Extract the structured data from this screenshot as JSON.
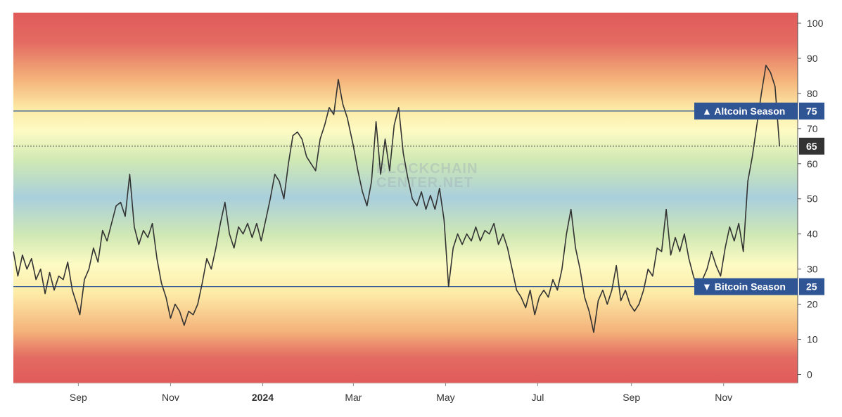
{
  "colors": {
    "line": "#333333",
    "threshold_line": "#2f5595",
    "tag_bg": "#2f5595",
    "current_tag_bg": "#333333",
    "band_red": "#e05a5a",
    "band_orange": "#f4b27a",
    "band_yellow": "#fdfbc4",
    "band_green": "#cfe8b4",
    "band_blue": "#a9cfdc"
  },
  "watermark": {
    "line1": "BLOCKCHAIN",
    "line2": "CENTER.NET"
  },
  "chart_data": {
    "type": "line",
    "title": "",
    "xlabel": "",
    "ylabel": "",
    "ylim": [
      -2.5,
      103
    ],
    "y_ticks": [
      "0",
      "10",
      "20",
      "30",
      "40",
      "50",
      "60",
      "70",
      "80",
      "90",
      "100"
    ],
    "y_axis_position": "right",
    "x_range": [
      "2023-07-20",
      "2024-12-20"
    ],
    "x_ticks": [
      {
        "date": "2023-09-01",
        "label": "Sep",
        "bold": false
      },
      {
        "date": "2023-11-01",
        "label": "Nov",
        "bold": false
      },
      {
        "date": "2024-01-01",
        "label": "2024",
        "bold": true
      },
      {
        "date": "2024-03-01",
        "label": "Mar",
        "bold": false
      },
      {
        "date": "2024-05-01",
        "label": "May",
        "bold": false
      },
      {
        "date": "2024-07-01",
        "label": "Jul",
        "bold": false
      },
      {
        "date": "2024-09-01",
        "label": "Sep",
        "bold": false
      },
      {
        "date": "2024-11-01",
        "label": "Nov",
        "bold": false
      }
    ],
    "thresholds": [
      {
        "name": "Altcoin Season",
        "value": 75,
        "label": "▲ Altcoin Season",
        "value_label": "75"
      },
      {
        "name": "Bitcoin Season",
        "value": 25,
        "label": "▼ Bitcoin Season",
        "value_label": "25"
      }
    ],
    "current": {
      "value": 65,
      "label": "65"
    },
    "series": [
      {
        "points": [
          [
            "2023-07-20",
            35
          ],
          [
            "2023-07-23",
            28
          ],
          [
            "2023-07-26",
            34
          ],
          [
            "2023-07-29",
            30
          ],
          [
            "2023-08-01",
            33
          ],
          [
            "2023-08-04",
            27
          ],
          [
            "2023-08-07",
            30
          ],
          [
            "2023-08-10",
            23
          ],
          [
            "2023-08-13",
            29
          ],
          [
            "2023-08-16",
            24
          ],
          [
            "2023-08-19",
            28
          ],
          [
            "2023-08-22",
            27
          ],
          [
            "2023-08-25",
            32
          ],
          [
            "2023-08-28",
            24
          ],
          [
            "2023-08-31",
            20
          ],
          [
            "2023-09-02",
            17
          ],
          [
            "2023-09-05",
            27
          ],
          [
            "2023-09-08",
            30
          ],
          [
            "2023-09-11",
            36
          ],
          [
            "2023-09-14",
            32
          ],
          [
            "2023-09-17",
            41
          ],
          [
            "2023-09-20",
            38
          ],
          [
            "2023-09-23",
            43
          ],
          [
            "2023-09-26",
            48
          ],
          [
            "2023-09-29",
            49
          ],
          [
            "2023-10-02",
            45
          ],
          [
            "2023-10-05",
            57
          ],
          [
            "2023-10-08",
            42
          ],
          [
            "2023-10-11",
            37
          ],
          [
            "2023-10-14",
            41
          ],
          [
            "2023-10-17",
            39
          ],
          [
            "2023-10-20",
            43
          ],
          [
            "2023-10-23",
            33
          ],
          [
            "2023-10-26",
            26
          ],
          [
            "2023-10-29",
            22
          ],
          [
            "2023-11-01",
            16
          ],
          [
            "2023-11-04",
            20
          ],
          [
            "2023-11-07",
            18
          ],
          [
            "2023-11-10",
            14
          ],
          [
            "2023-11-13",
            18
          ],
          [
            "2023-11-16",
            17
          ],
          [
            "2023-11-19",
            20
          ],
          [
            "2023-11-22",
            26
          ],
          [
            "2023-11-25",
            33
          ],
          [
            "2023-11-28",
            30
          ],
          [
            "2023-12-01",
            36
          ],
          [
            "2023-12-04",
            43
          ],
          [
            "2023-12-07",
            49
          ],
          [
            "2023-12-10",
            40
          ],
          [
            "2023-12-13",
            36
          ],
          [
            "2023-12-16",
            42
          ],
          [
            "2023-12-19",
            40
          ],
          [
            "2023-12-22",
            43
          ],
          [
            "2023-12-25",
            39
          ],
          [
            "2023-12-28",
            43
          ],
          [
            "2023-12-31",
            38
          ],
          [
            "2024-01-03",
            44
          ],
          [
            "2024-01-06",
            50
          ],
          [
            "2024-01-09",
            57
          ],
          [
            "2024-01-12",
            55
          ],
          [
            "2024-01-15",
            50
          ],
          [
            "2024-01-18",
            60
          ],
          [
            "2024-01-21",
            68
          ],
          [
            "2024-01-24",
            69
          ],
          [
            "2024-01-27",
            67
          ],
          [
            "2024-01-30",
            62
          ],
          [
            "2024-02-02",
            60
          ],
          [
            "2024-02-05",
            58
          ],
          [
            "2024-02-08",
            67
          ],
          [
            "2024-02-11",
            71
          ],
          [
            "2024-02-14",
            76
          ],
          [
            "2024-02-17",
            74
          ],
          [
            "2024-02-20",
            84
          ],
          [
            "2024-02-23",
            77
          ],
          [
            "2024-02-26",
            73
          ],
          [
            "2024-03-01",
            65
          ],
          [
            "2024-03-04",
            58
          ],
          [
            "2024-03-07",
            52
          ],
          [
            "2024-03-10",
            48
          ],
          [
            "2024-03-13",
            55
          ],
          [
            "2024-03-16",
            72
          ],
          [
            "2024-03-19",
            57
          ],
          [
            "2024-03-22",
            67
          ],
          [
            "2024-03-25",
            58
          ],
          [
            "2024-03-28",
            71
          ],
          [
            "2024-03-31",
            76
          ],
          [
            "2024-04-03",
            63
          ],
          [
            "2024-04-06",
            56
          ],
          [
            "2024-04-09",
            50
          ],
          [
            "2024-04-12",
            48
          ],
          [
            "2024-04-15",
            52
          ],
          [
            "2024-04-18",
            47
          ],
          [
            "2024-04-21",
            51
          ],
          [
            "2024-04-24",
            47
          ],
          [
            "2024-04-27",
            53
          ],
          [
            "2024-04-30",
            44
          ],
          [
            "2024-05-03",
            25
          ],
          [
            "2024-05-06",
            36
          ],
          [
            "2024-05-09",
            40
          ],
          [
            "2024-05-12",
            37
          ],
          [
            "2024-05-15",
            40
          ],
          [
            "2024-05-18",
            38
          ],
          [
            "2024-05-21",
            42
          ],
          [
            "2024-05-24",
            38
          ],
          [
            "2024-05-27",
            41
          ],
          [
            "2024-05-30",
            40
          ],
          [
            "2024-06-02",
            43
          ],
          [
            "2024-06-05",
            37
          ],
          [
            "2024-06-08",
            40
          ],
          [
            "2024-06-11",
            36
          ],
          [
            "2024-06-14",
            30
          ],
          [
            "2024-06-17",
            24
          ],
          [
            "2024-06-20",
            22
          ],
          [
            "2024-06-23",
            19
          ],
          [
            "2024-06-26",
            24
          ],
          [
            "2024-06-29",
            17
          ],
          [
            "2024-07-02",
            22
          ],
          [
            "2024-07-05",
            24
          ],
          [
            "2024-07-08",
            22
          ],
          [
            "2024-07-11",
            27
          ],
          [
            "2024-07-14",
            24
          ],
          [
            "2024-07-17",
            30
          ],
          [
            "2024-07-20",
            40
          ],
          [
            "2024-07-23",
            47
          ],
          [
            "2024-07-26",
            36
          ],
          [
            "2024-07-29",
            30
          ],
          [
            "2024-08-01",
            22
          ],
          [
            "2024-08-04",
            18
          ],
          [
            "2024-08-07",
            12
          ],
          [
            "2024-08-10",
            21
          ],
          [
            "2024-08-13",
            24
          ],
          [
            "2024-08-16",
            20
          ],
          [
            "2024-08-19",
            24
          ],
          [
            "2024-08-22",
            31
          ],
          [
            "2024-08-25",
            21
          ],
          [
            "2024-08-28",
            24
          ],
          [
            "2024-08-31",
            20
          ],
          [
            "2024-09-03",
            18
          ],
          [
            "2024-09-06",
            20
          ],
          [
            "2024-09-09",
            24
          ],
          [
            "2024-09-12",
            30
          ],
          [
            "2024-09-15",
            28
          ],
          [
            "2024-09-18",
            36
          ],
          [
            "2024-09-21",
            35
          ],
          [
            "2024-09-24",
            47
          ],
          [
            "2024-09-27",
            34
          ],
          [
            "2024-09-30",
            39
          ],
          [
            "2024-10-03",
            35
          ],
          [
            "2024-10-06",
            40
          ],
          [
            "2024-10-09",
            33
          ],
          [
            "2024-10-12",
            28
          ],
          [
            "2024-10-15",
            24
          ],
          [
            "2024-10-18",
            27
          ],
          [
            "2024-10-21",
            30
          ],
          [
            "2024-10-24",
            35
          ],
          [
            "2024-10-27",
            31
          ],
          [
            "2024-10-30",
            28
          ],
          [
            "2024-11-02",
            36
          ],
          [
            "2024-11-05",
            42
          ],
          [
            "2024-11-08",
            38
          ],
          [
            "2024-11-11",
            43
          ],
          [
            "2024-11-14",
            35
          ],
          [
            "2024-11-17",
            55
          ],
          [
            "2024-11-20",
            62
          ],
          [
            "2024-11-23",
            71
          ],
          [
            "2024-11-26",
            80
          ],
          [
            "2024-11-29",
            88
          ],
          [
            "2024-12-02",
            86
          ],
          [
            "2024-12-05",
            82
          ],
          [
            "2024-12-08",
            65
          ]
        ]
      }
    ]
  }
}
